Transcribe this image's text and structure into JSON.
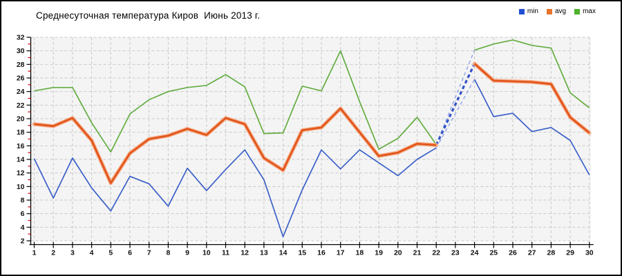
{
  "title": "Среднесуточная температура Киров  Июнь 2013 г.",
  "legend": [
    {
      "label": "min",
      "color": "#2250d4"
    },
    {
      "label": "avg",
      "color": "#e8732a"
    },
    {
      "label": "max",
      "color": "#4fb02c"
    }
  ],
  "colors": {
    "plot_background": "#f4f4f4",
    "gridline": "#c9c9c9",
    "axis": "#000000",
    "minor_tick": "#cc0000",
    "min_line": "#3a5fc8",
    "avg_core": "#e2561c",
    "avg_halo": "#f6ae8a",
    "max_line": "#63ad41",
    "bridge_thick": "#3452c8",
    "bridge_thin": "#8ea3e6",
    "label_color": "#111111"
  },
  "chart_data": {
    "type": "line",
    "title": "Среднесуточная температура Киров  Июнь 2013 г.",
    "xlabel": "",
    "ylabel": "",
    "x": [
      1,
      2,
      3,
      4,
      5,
      6,
      7,
      8,
      9,
      10,
      11,
      12,
      13,
      14,
      15,
      16,
      17,
      18,
      19,
      20,
      21,
      22,
      23,
      24,
      25,
      26,
      27,
      28,
      29,
      30
    ],
    "ylim": [
      2,
      32
    ],
    "ytick_step": 2,
    "grid": "dashed",
    "legend_position": "top-right",
    "missing_days": [
      23
    ],
    "series": [
      {
        "name": "min",
        "values": [
          14.1,
          8.3,
          14.2,
          9.8,
          6.4,
          11.5,
          10.4,
          7.1,
          12.7,
          9.4,
          12.5,
          15.4,
          11.0,
          2.6,
          9.5,
          15.4,
          12.6,
          15.4,
          13.5,
          11.6,
          14.0,
          15.7,
          null,
          25.8,
          20.3,
          20.8,
          18.1,
          18.7,
          16.8,
          11.7
        ]
      },
      {
        "name": "avg",
        "values": [
          19.2,
          18.9,
          20.1,
          16.8,
          10.5,
          14.9,
          17.0,
          17.5,
          18.5,
          17.6,
          20.1,
          19.2,
          14.2,
          12.4,
          18.3,
          18.7,
          21.5,
          18.0,
          14.5,
          15.0,
          16.3,
          16.1,
          null,
          28.1,
          25.6,
          25.5,
          25.4,
          25.1,
          20.2,
          17.9
        ]
      },
      {
        "name": "max",
        "values": [
          24.1,
          24.6,
          24.6,
          19.4,
          15.1,
          20.7,
          22.8,
          24.0,
          24.6,
          24.9,
          26.5,
          24.7,
          17.8,
          17.9,
          24.8,
          24.1,
          30.0,
          22.5,
          15.5,
          17.1,
          20.2,
          16.2,
          null,
          30.1,
          31.0,
          31.6,
          30.8,
          30.4,
          23.8,
          21.6
        ]
      }
    ],
    "forecast_bridge": {
      "from_day": 22,
      "to_day": 24,
      "note": "dashed blue lines bridge the missing day 23 for min, avg and max"
    }
  }
}
